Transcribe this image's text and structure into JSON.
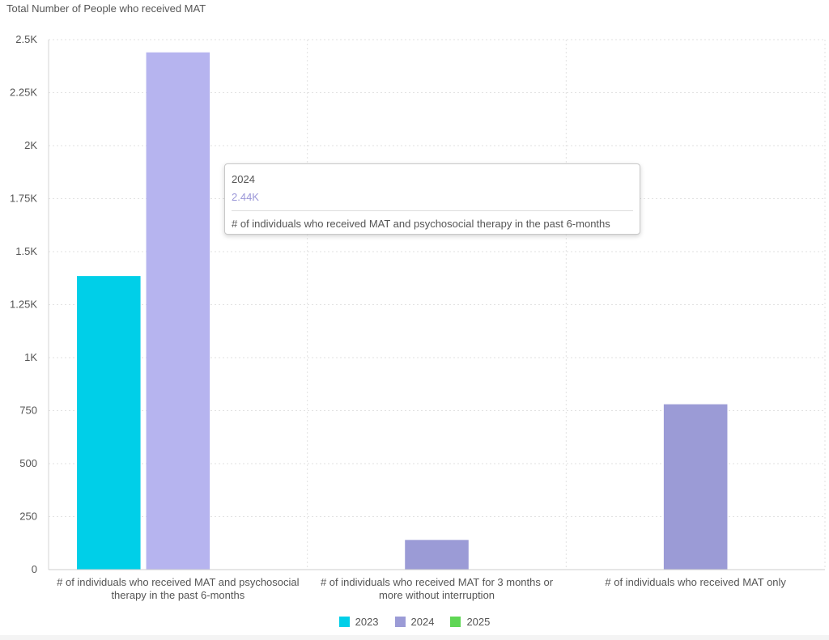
{
  "chart_data": {
    "type": "bar",
    "title": "Total Number of People who received MAT",
    "categories": [
      "# of individuals who received MAT and psychosocial therapy in the past 6-months",
      "# of individuals who received MAT for 3 months or more without interruption",
      "# of individuals who received MAT only"
    ],
    "category_labels": [
      [
        "# of individuals who received MAT and psychosocial",
        "therapy in the past 6-months"
      ],
      [
        "# of individuals who received MAT for 3 months or",
        "more without interruption"
      ],
      [
        "# of individuals who received MAT only"
      ]
    ],
    "series": [
      {
        "name": "2023",
        "color": "#00cfe8",
        "values": [
          1385,
          null,
          null
        ]
      },
      {
        "name": "2024",
        "color": "#9b9bd6",
        "values": [
          2440,
          140,
          780
        ]
      },
      {
        "name": "2025",
        "color": "#5fd655",
        "values": [
          null,
          null,
          null
        ]
      }
    ],
    "ylim": [
      0,
      2500
    ],
    "yticks": [
      0,
      250,
      500,
      750,
      1000,
      1250,
      1500,
      1750,
      2000,
      2250,
      2500
    ],
    "ytick_labels": [
      "0",
      "250",
      "500",
      "750",
      "1K",
      "1.25K",
      "1.5K",
      "1.75K",
      "2K",
      "2.25K",
      "2.5K"
    ],
    "grid": true,
    "legend_position": "bottom",
    "highlight": {
      "series": "2024",
      "category_index": 0,
      "color": "#b6b4ef"
    }
  },
  "tooltip": {
    "title": "2024",
    "value": "2.44K",
    "description": "# of individuals who received MAT and psychosocial therapy in the past 6-months"
  }
}
